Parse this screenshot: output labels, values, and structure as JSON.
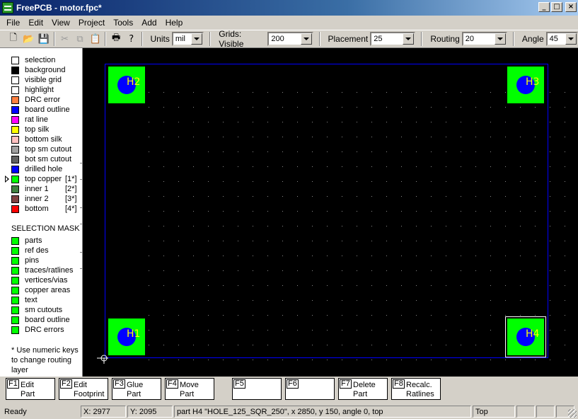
{
  "window": {
    "title": "FreePCB - motor.fpc*",
    "buttons": [
      "_",
      "□",
      "×"
    ]
  },
  "menu": [
    "File",
    "Edit",
    "View",
    "Project",
    "Tools",
    "Add",
    "Help"
  ],
  "toolbar": {
    "units_label": "Units",
    "units_value": "mil",
    "grids_label": "Grids: Visible",
    "visible_value": "200",
    "placement_label": "Placement",
    "placement_value": "25",
    "routing_label": "Routing",
    "routing_value": "20",
    "angle_label": "Angle",
    "angle_value": "45",
    "icons": [
      "new-icon",
      "open-icon",
      "save-icon",
      "cut-icon",
      "copy-icon",
      "paste-icon",
      "print-icon",
      "help-icon"
    ]
  },
  "layers": [
    {
      "name": "selection",
      "color": "#ffffff"
    },
    {
      "name": "background",
      "color": "#000000"
    },
    {
      "name": "visible grid",
      "color": "#ffffff"
    },
    {
      "name": "highlight",
      "color": "#ffffff"
    },
    {
      "name": "DRC error",
      "color": "#ff8040"
    },
    {
      "name": "board outline",
      "color": "#0000ff"
    },
    {
      "name": "rat line",
      "color": "#ff00ff"
    },
    {
      "name": "top silk",
      "color": "#ffff00"
    },
    {
      "name": "bottom silk",
      "color": "#ffc0c0"
    },
    {
      "name": "top sm cutout",
      "color": "#a0a0a0"
    },
    {
      "name": "bot sm cutout",
      "color": "#606060"
    },
    {
      "name": "drilled hole",
      "color": "#0000ff"
    },
    {
      "name": "top copper",
      "color": "#00ff00",
      "num": "[1*]",
      "active": true
    },
    {
      "name": "inner 1",
      "color": "#408040",
      "num": "[2*]"
    },
    {
      "name": "inner 2",
      "color": "#804040",
      "num": "[3*]"
    },
    {
      "name": "bottom",
      "color": "#ff0000",
      "num": "[4*]"
    }
  ],
  "selection_mask": {
    "title": "SELECTION MASK",
    "color": "#00ff00",
    "items": [
      "parts",
      "ref des",
      "pins",
      "traces/ratlines",
      "vertices/vias",
      "copper areas",
      "text",
      "sm cutouts",
      "board outline",
      "DRC errors"
    ]
  },
  "note": "* Use numeric keys to change routing layer",
  "parts": [
    {
      "ref": "H2",
      "corner": "top-left"
    },
    {
      "ref": "H3",
      "corner": "top-right"
    },
    {
      "ref": "H1",
      "corner": "bottom-left"
    },
    {
      "ref": "H4",
      "corner": "bottom-right",
      "selected": true
    }
  ],
  "fkeys": [
    {
      "key": "F1",
      "line1": "Edit",
      "line2": "Part"
    },
    {
      "key": "F2",
      "line1": "Edit",
      "line2": "Footprint"
    },
    {
      "key": "F3",
      "line1": "Glue",
      "line2": "Part"
    },
    {
      "key": "F4",
      "line1": "Move",
      "line2": "Part"
    },
    {
      "key": "F5",
      "line1": "",
      "line2": ""
    },
    {
      "key": "F6",
      "line1": "",
      "line2": ""
    },
    {
      "key": "F7",
      "line1": "Delete",
      "line2": "Part"
    },
    {
      "key": "F8",
      "line1": "Recalc.",
      "line2": "Ratlines"
    }
  ],
  "status": {
    "ready": "Ready",
    "x": "X: 2977",
    "y": "Y: 2095",
    "info": "part H4 \"HOLE_125_SQR_250\", x 2850, y 150, angle 0, top",
    "layer": "Top"
  }
}
